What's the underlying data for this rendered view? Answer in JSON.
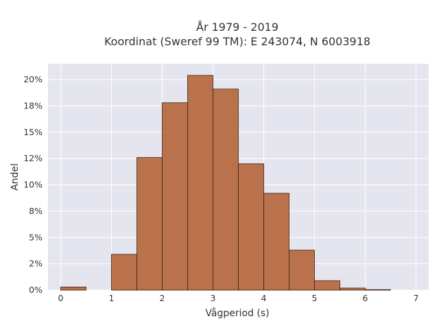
{
  "chart_data": {
    "type": "bar",
    "title": "År 1979 - 2019",
    "subtitle": "Koordinat (Sweref 99 TM): E 243074, N 6003918",
    "xlabel": "Vågperiod (s)",
    "ylabel": "Andel",
    "bin_width": 0.5,
    "bins": [
      {
        "x0": 0.0,
        "x1": 0.5,
        "value": 0.003
      },
      {
        "x0": 0.5,
        "x1": 1.0,
        "value": 0.0
      },
      {
        "x0": 1.0,
        "x1": 1.5,
        "value": 0.034
      },
      {
        "x0": 1.5,
        "x1": 2.0,
        "value": 0.126
      },
      {
        "x0": 2.0,
        "x1": 2.5,
        "value": 0.178
      },
      {
        "x0": 2.5,
        "x1": 3.0,
        "value": 0.204
      },
      {
        "x0": 3.0,
        "x1": 3.5,
        "value": 0.191
      },
      {
        "x0": 3.5,
        "x1": 4.0,
        "value": 0.12
      },
      {
        "x0": 4.0,
        "x1": 4.5,
        "value": 0.092
      },
      {
        "x0": 4.5,
        "x1": 5.0,
        "value": 0.038
      },
      {
        "x0": 5.0,
        "x1": 5.5,
        "value": 0.009
      },
      {
        "x0": 5.5,
        "x1": 6.0,
        "value": 0.002
      },
      {
        "x0": 6.0,
        "x1": 6.5,
        "value": 0.0005
      },
      {
        "x0": 6.5,
        "x1": 7.0,
        "value": 0.0
      }
    ],
    "xlim": [
      -0.25,
      7.25
    ],
    "ylim": [
      0,
      0.215
    ],
    "xticks": [
      0,
      1,
      2,
      3,
      4,
      5,
      6,
      7
    ],
    "xtick_labels": [
      "0",
      "1",
      "2",
      "3",
      "4",
      "5",
      "6",
      "7"
    ],
    "yticks": [
      0,
      0.025,
      0.05,
      0.075,
      0.1,
      0.125,
      0.15,
      0.175,
      0.2
    ],
    "ytick_labels": [
      "0%",
      "2%",
      "5%",
      "8%",
      "10%",
      "12%",
      "15%",
      "18%",
      "20%"
    ],
    "grid": true,
    "colors": {
      "bar_fill": "#b5653b",
      "bar_stroke": "#3a2010",
      "plot_background": "#e5e5ef",
      "grid": "#ffffff"
    }
  }
}
